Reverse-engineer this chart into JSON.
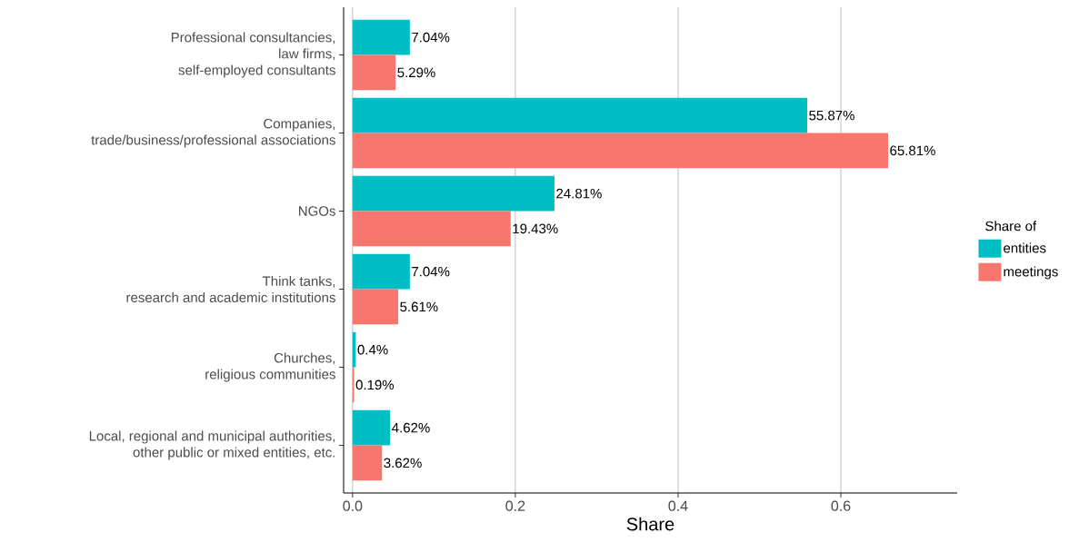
{
  "chart_data": {
    "type": "bar",
    "orientation": "horizontal",
    "categories": [
      "Professional consultancies,\nlaw firms,\nself-employed consultants",
      "Companies,\ntrade/business/professional associations",
      "NGOs",
      "Think tanks,\nresearch and academic institutions",
      "Churches,\nreligious communities",
      "Local, regional and municipal authorities,\nother public or mixed entities, etc."
    ],
    "series": [
      {
        "name": "entities",
        "color": "#00bfc4",
        "values": [
          0.0704,
          0.5587,
          0.2481,
          0.0704,
          0.004,
          0.0462
        ],
        "value_labels": [
          "7.04%",
          "55.87%",
          "24.81%",
          "7.04%",
          "0.4%",
          "4.62%"
        ]
      },
      {
        "name": "meetings",
        "color": "#f8766d",
        "values": [
          0.0529,
          0.6581,
          0.1943,
          0.0561,
          0.0019,
          0.0362
        ],
        "value_labels": [
          "5.29%",
          "65.81%",
          "19.43%",
          "5.61%",
          "0.19%",
          "3.62%"
        ]
      }
    ],
    "xlabel": "Share",
    "legend_title": "Share of",
    "legend": "right",
    "grid": "x",
    "xlim": [
      -0.011,
      0.743
    ],
    "xticks": [
      {
        "value": 0,
        "label": "0.0"
      },
      0.2,
      0.4,
      0.6
    ]
  }
}
